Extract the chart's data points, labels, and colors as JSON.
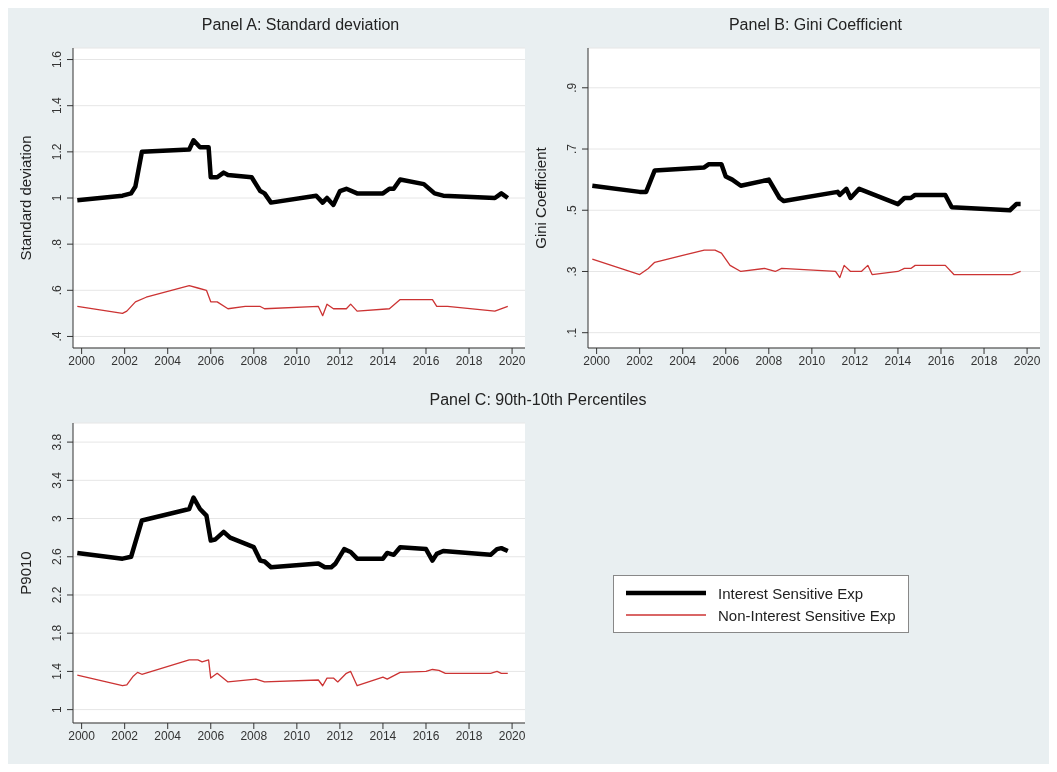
{
  "chart_data": [
    {
      "type": "line",
      "title": "Panel A: Standard deviation",
      "ylabel": "Standard deviation",
      "xlim": [
        1999.6,
        2020.6
      ],
      "xticks": [
        2000,
        2002,
        2004,
        2006,
        2008,
        2010,
        2012,
        2014,
        2016,
        2018,
        2020
      ],
      "ylim": [
        0.35,
        1.65
      ],
      "yticks": [
        {
          "value": 0.4,
          "label": ".4"
        },
        {
          "value": 0.6,
          "label": ".6"
        },
        {
          "value": 0.8,
          "label": ".8"
        },
        1,
        1.2,
        1.4,
        1.6
      ],
      "grid": "y",
      "marker": "none",
      "line_style": "solid",
      "series": [
        {
          "color": "#000000",
          "x": [
            1999.8,
            2001.9,
            2002.3,
            2002.5,
            2002.8,
            2005.0,
            2005.2,
            2005.5,
            2005.9,
            2006.0,
            2006.3,
            2006.6,
            2006.8,
            2007.9,
            2008.3,
            2008.5,
            2008.8,
            2010.9,
            2011.2,
            2011.4,
            2011.7,
            2012.0,
            2012.3,
            2012.8,
            2014.0,
            2014.3,
            2014.5,
            2014.8,
            2015.9,
            2016.4,
            2016.8,
            2019.2,
            2019.5,
            2019.8
          ],
          "values": [
            0.99,
            1.01,
            1.02,
            1.05,
            1.2,
            1.21,
            1.25,
            1.22,
            1.22,
            1.09,
            1.09,
            1.11,
            1.1,
            1.09,
            1.03,
            1.02,
            0.98,
            1.01,
            0.98,
            1.0,
            0.97,
            1.03,
            1.04,
            1.02,
            1.02,
            1.04,
            1.04,
            1.08,
            1.06,
            1.02,
            1.01,
            1.0,
            1.02,
            1.0
          ]
        },
        {
          "color": "#cc3333",
          "x": [
            1999.8,
            2001.9,
            2002.1,
            2002.5,
            2003.0,
            2005.0,
            2005.4,
            2005.8,
            2006.0,
            2006.3,
            2006.8,
            2007.6,
            2008.3,
            2008.5,
            2011.0,
            2011.2,
            2011.4,
            2011.7,
            2012.3,
            2012.5,
            2012.8,
            2014.3,
            2014.8,
            2016.3,
            2016.5,
            2017.0,
            2019.2,
            2019.8
          ],
          "values": [
            0.53,
            0.5,
            0.51,
            0.55,
            0.57,
            0.62,
            0.61,
            0.6,
            0.55,
            0.55,
            0.52,
            0.53,
            0.53,
            0.52,
            0.53,
            0.49,
            0.54,
            0.52,
            0.52,
            0.54,
            0.51,
            0.52,
            0.56,
            0.56,
            0.53,
            0.53,
            0.51,
            0.53
          ]
        }
      ]
    },
    {
      "type": "line",
      "title": "Panel B: Gini Coefficient",
      "ylabel": "Gini Coefficient",
      "xlim": [
        1999.6,
        2020.6
      ],
      "xticks": [
        2000,
        2002,
        2004,
        2006,
        2008,
        2010,
        2012,
        2014,
        2016,
        2018,
        2020
      ],
      "ylim": [
        0.05,
        1.03
      ],
      "yticks": [
        {
          "value": 0.1,
          "label": ".1"
        },
        {
          "value": 0.3,
          "label": ".3"
        },
        {
          "value": 0.5,
          "label": ".5"
        },
        {
          "value": 0.7,
          "label": ".7"
        },
        {
          "value": 0.9,
          "label": ".9"
        }
      ],
      "grid": "y",
      "marker": "none",
      "line_style": "solid",
      "series": [
        {
          "color": "#000000",
          "x": [
            1999.8,
            2002.0,
            2002.3,
            2002.7,
            2005.0,
            2005.2,
            2005.5,
            2005.8,
            2006.0,
            2006.3,
            2006.7,
            2008.0,
            2008.5,
            2008.7,
            2011.2,
            2011.3,
            2011.6,
            2011.8,
            2012.2,
            2014.0,
            2014.3,
            2014.6,
            2014.8,
            2016.2,
            2016.5,
            2019.2,
            2019.5,
            2019.7
          ],
          "values": [
            0.58,
            0.56,
            0.56,
            0.63,
            0.64,
            0.65,
            0.65,
            0.65,
            0.61,
            0.6,
            0.58,
            0.6,
            0.54,
            0.53,
            0.56,
            0.55,
            0.57,
            0.54,
            0.57,
            0.52,
            0.54,
            0.54,
            0.55,
            0.55,
            0.51,
            0.5,
            0.52,
            0.52
          ]
        },
        {
          "color": "#cc3333",
          "x": [
            1999.8,
            2002.0,
            2002.4,
            2002.7,
            2005.0,
            2005.5,
            2005.8,
            2006.2,
            2006.7,
            2007.8,
            2008.3,
            2008.6,
            2011.1,
            2011.3,
            2011.5,
            2011.8,
            2012.3,
            2012.6,
            2012.8,
            2014.0,
            2014.3,
            2014.6,
            2014.8,
            2016.2,
            2016.6,
            2019.3,
            2019.7
          ],
          "values": [
            0.34,
            0.29,
            0.31,
            0.33,
            0.37,
            0.37,
            0.36,
            0.32,
            0.3,
            0.31,
            0.3,
            0.31,
            0.3,
            0.28,
            0.32,
            0.3,
            0.3,
            0.32,
            0.29,
            0.3,
            0.31,
            0.31,
            0.32,
            0.32,
            0.29,
            0.29,
            0.3
          ]
        }
      ]
    },
    {
      "type": "line",
      "title": "Panel C: 90th-10th Percentiles",
      "ylabel": "P9010",
      "xlim": [
        1999.6,
        2020.6
      ],
      "xticks": [
        2000,
        2002,
        2004,
        2006,
        2008,
        2010,
        2012,
        2014,
        2016,
        2018,
        2020
      ],
      "ylim": [
        0.86,
        4.0
      ],
      "yticks": [
        1,
        1.4,
        1.8,
        2.2,
        2.6,
        3,
        3.4,
        3.8
      ],
      "grid": "y",
      "marker": "none",
      "line_style": "solid",
      "legend": "right",
      "series": [
        {
          "name": "Interest Sensitive Exp",
          "color": "#000000",
          "x": [
            1999.8,
            2001.9,
            2002.3,
            2002.8,
            2005.0,
            2005.2,
            2005.5,
            2005.8,
            2006.0,
            2006.2,
            2006.6,
            2006.9,
            2008.0,
            2008.3,
            2008.5,
            2008.8,
            2011.0,
            2011.3,
            2011.6,
            2011.8,
            2012.2,
            2012.5,
            2012.8,
            2014.0,
            2014.2,
            2014.5,
            2014.8,
            2016.0,
            2016.3,
            2016.5,
            2016.8,
            2019.0,
            2019.3,
            2019.5,
            2019.8
          ],
          "values": [
            2.64,
            2.58,
            2.6,
            2.98,
            3.1,
            3.22,
            3.1,
            3.03,
            2.77,
            2.78,
            2.86,
            2.8,
            2.7,
            2.56,
            2.55,
            2.49,
            2.53,
            2.49,
            2.49,
            2.53,
            2.68,
            2.65,
            2.58,
            2.58,
            2.64,
            2.62,
            2.7,
            2.68,
            2.56,
            2.63,
            2.66,
            2.62,
            2.68,
            2.69,
            2.66
          ]
        },
        {
          "name": "Non-Interest Sensitive Exp",
          "color": "#cc3333",
          "x": [
            1999.8,
            2001.9,
            2002.1,
            2002.4,
            2002.6,
            2002.8,
            2005.0,
            2005.4,
            2005.6,
            2005.9,
            2006.0,
            2006.3,
            2006.8,
            2008.1,
            2008.5,
            2011.0,
            2011.2,
            2011.4,
            2011.7,
            2011.9,
            2012.3,
            2012.5,
            2012.8,
            2014.0,
            2014.2,
            2014.8,
            2016.0,
            2016.3,
            2016.6,
            2016.9,
            2019.0,
            2019.3,
            2019.5,
            2019.8
          ],
          "values": [
            1.36,
            1.25,
            1.26,
            1.35,
            1.39,
            1.37,
            1.52,
            1.52,
            1.5,
            1.52,
            1.33,
            1.38,
            1.29,
            1.32,
            1.29,
            1.31,
            1.25,
            1.33,
            1.33,
            1.29,
            1.38,
            1.4,
            1.25,
            1.34,
            1.32,
            1.39,
            1.4,
            1.42,
            1.41,
            1.38,
            1.38,
            1.4,
            1.38,
            1.38
          ]
        }
      ]
    }
  ]
}
